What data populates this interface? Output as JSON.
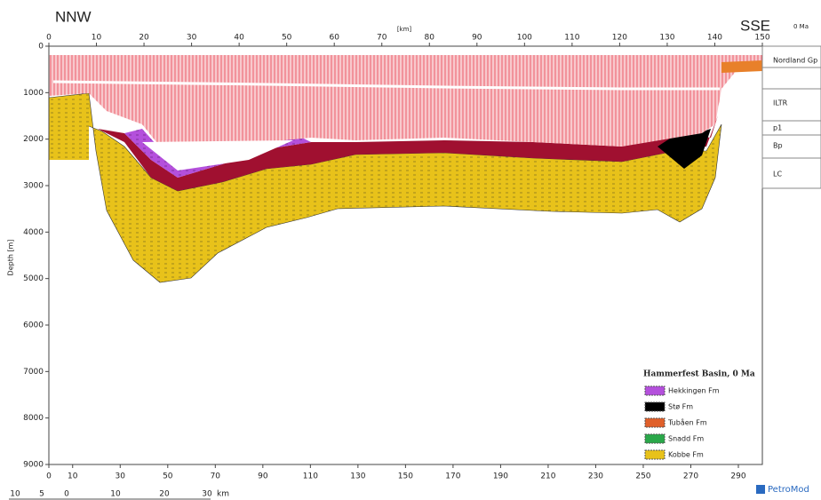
{
  "header": {
    "left": "NNW",
    "right": "SSE",
    "age": "0 Ma",
    "axis_unit": "[km]",
    "depth_label": "Depth [m]"
  },
  "top_axis": {
    "range": [
      0,
      150
    ],
    "ticks": [
      0,
      10,
      20,
      30,
      40,
      50,
      60,
      70,
      80,
      90,
      100,
      110,
      120,
      130,
      140,
      150
    ]
  },
  "depth_axis": {
    "range": [
      0,
      9000
    ],
    "ticks": [
      0,
      1000,
      2000,
      3000,
      4000,
      5000,
      6000,
      7000,
      8000,
      9000
    ]
  },
  "bottom_axis": {
    "range": [
      0,
      290
    ],
    "ticks": [
      0,
      10,
      30,
      50,
      70,
      90,
      110,
      130,
      150,
      170,
      190,
      210,
      230,
      250,
      270,
      290
    ]
  },
  "scale_bar": {
    "labels": [
      10,
      5,
      0,
      10,
      20,
      30
    ],
    "unit": "km"
  },
  "layers": [
    "Nordland Gp",
    "ILTR",
    "p1",
    "Bp",
    "LC"
  ],
  "legend": {
    "title": "Hammerfest Basin, 0 Ma",
    "items": [
      {
        "name": "Hekkingen Fm",
        "color": "#b450dc"
      },
      {
        "name": "Stø Fm",
        "color": "#000000"
      },
      {
        "name": "Tubåen Fm",
        "color": "#e0602a"
      },
      {
        "name": "Snadd Fm",
        "color": "#2aa84a"
      },
      {
        "name": "Kobbe Fm",
        "color": "#e8c21a"
      }
    ]
  },
  "brand": "PetroMod"
}
